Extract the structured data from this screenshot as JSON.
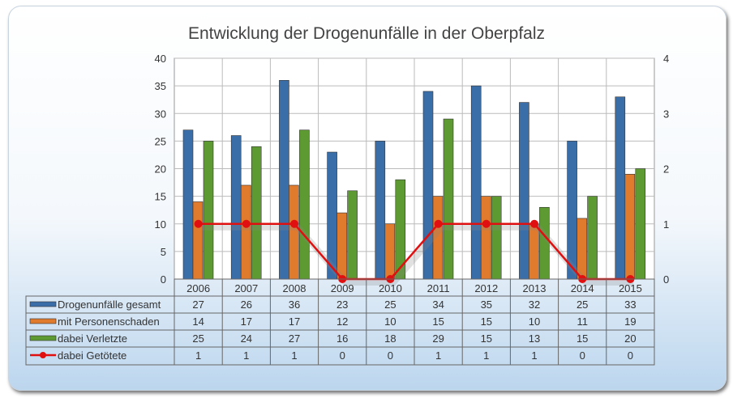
{
  "chart_data": {
    "type": "bar",
    "title": "Entwicklung der Drogenunfälle in der Oberpfalz",
    "categories": [
      "2006",
      "2007",
      "2008",
      "2009",
      "2010",
      "2011",
      "2012",
      "2013",
      "2014",
      "2015"
    ],
    "series": [
      {
        "name": "Drogenunfälle gesamt",
        "type": "bar",
        "axis": "left",
        "color": "#3a6ea8",
        "values": [
          27,
          26,
          36,
          23,
          25,
          34,
          35,
          32,
          25,
          33
        ]
      },
      {
        "name": "mit Personenschaden",
        "type": "bar",
        "axis": "left",
        "color": "#e07a2c",
        "values": [
          14,
          17,
          17,
          12,
          10,
          15,
          15,
          10,
          11,
          19
        ]
      },
      {
        "name": "dabei Verletzte",
        "type": "bar",
        "axis": "left",
        "color": "#5e9a32",
        "values": [
          25,
          24,
          27,
          16,
          18,
          29,
          15,
          13,
          15,
          20
        ]
      },
      {
        "name": "dabei Getötete",
        "type": "line",
        "axis": "right",
        "color": "#e01010",
        "values": [
          1,
          1,
          1,
          0,
          0,
          1,
          1,
          1,
          0,
          0
        ]
      }
    ],
    "ylim": [
      0,
      40
    ],
    "yticks": [
      0,
      5,
      10,
      15,
      20,
      25,
      30,
      35,
      40
    ],
    "y2lim": [
      0,
      4
    ],
    "y2ticks": [
      0,
      1,
      2,
      3,
      4
    ],
    "grid": true,
    "legend": "data-table"
  }
}
